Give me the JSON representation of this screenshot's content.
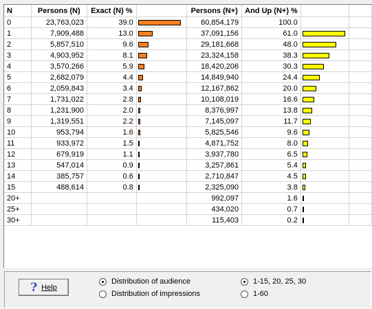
{
  "columns": {
    "n": "N",
    "persons_n": "Persons (N)",
    "exact_pct": "Exact (N) %",
    "persons_nplus": "Persons (N+)",
    "andup_pct": "And Up (N+) %"
  },
  "rows": [
    {
      "n": "0",
      "persons": "23,763,023",
      "exact": "39.0",
      "persons_plus": "60,854,179",
      "andup": "100.0"
    },
    {
      "n": "1",
      "persons": "7,909,488",
      "exact": "13.0",
      "persons_plus": "37,091,156",
      "andup": "61.0"
    },
    {
      "n": "2",
      "persons": "5,857,510",
      "exact": "9.6",
      "persons_plus": "29,181,668",
      "andup": "48.0"
    },
    {
      "n": "3",
      "persons": "4,903,952",
      "exact": "8.1",
      "persons_plus": "23,324,158",
      "andup": "38.3"
    },
    {
      "n": "4",
      "persons": "3,570,266",
      "exact": "5.9",
      "persons_plus": "18,420,206",
      "andup": "30.3"
    },
    {
      "n": "5",
      "persons": "2,682,079",
      "exact": "4.4",
      "persons_plus": "14,849,940",
      "andup": "24.4"
    },
    {
      "n": "6",
      "persons": "2,059,843",
      "exact": "3.4",
      "persons_plus": "12,167,862",
      "andup": "20.0"
    },
    {
      "n": "7",
      "persons": "1,731,022",
      "exact": "2.8",
      "persons_plus": "10,108,019",
      "andup": "16.6"
    },
    {
      "n": "8",
      "persons": "1,231,900",
      "exact": "2.0",
      "persons_plus": "8,376,997",
      "andup": "13.8"
    },
    {
      "n": "9",
      "persons": "1,319,551",
      "exact": "2.2",
      "persons_plus": "7,145,097",
      "andup": "11.7"
    },
    {
      "n": "10",
      "persons": "953,794",
      "exact": "1.6",
      "persons_plus": "5,825,546",
      "andup": "9.6"
    },
    {
      "n": "11",
      "persons": "933,972",
      "exact": "1.5",
      "persons_plus": "4,871,752",
      "andup": "8.0"
    },
    {
      "n": "12",
      "persons": "679,919",
      "exact": "1.1",
      "persons_plus": "3,937,780",
      "andup": "6.5"
    },
    {
      "n": "13",
      "persons": "547,014",
      "exact": "0.9",
      "persons_plus": "3,257,861",
      "andup": "5.4"
    },
    {
      "n": "14",
      "persons": "385,757",
      "exact": "0.6",
      "persons_plus": "2,710,847",
      "andup": "4.5"
    },
    {
      "n": "15",
      "persons": "488,614",
      "exact": "0.8",
      "persons_plus": "2,325,090",
      "andup": "3.8"
    },
    {
      "n": "20+",
      "persons": "",
      "exact": "",
      "persons_plus": "992,097",
      "andup": "1.6"
    },
    {
      "n": "25+",
      "persons": "",
      "exact": "",
      "persons_plus": "434,020",
      "andup": "0.7"
    },
    {
      "n": "30+",
      "persons": "",
      "exact": "",
      "persons_plus": "115,403",
      "andup": "0.2"
    }
  ],
  "bar_colors": {
    "exact": "#f47f20",
    "andup": "#ffff00"
  },
  "help": {
    "icon": "question-icon",
    "label": "Help"
  },
  "distribution": {
    "options": [
      "Distribution of audience",
      "Distribution of impressions"
    ],
    "selected": "Distribution of audience"
  },
  "range": {
    "options": [
      "1-15, 20, 25, 30",
      "1-60"
    ],
    "selected": "1-15, 20, 25, 30"
  }
}
